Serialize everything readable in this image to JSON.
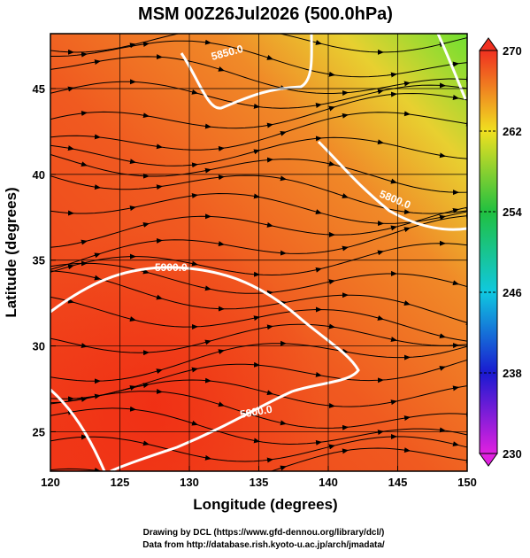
{
  "chart_data": {
    "type": "map",
    "title": "MSM 00Z26Jul2026 (500.0hPa)",
    "x_label": "Longitude (degrees)",
    "y_label": "Latitude (degrees)",
    "xlim": [
      120,
      150
    ],
    "xticks": [
      120,
      125,
      130,
      135,
      140,
      145,
      150
    ],
    "ylim": [
      22.7,
      48.2
    ],
    "yticks": [
      25,
      30,
      35,
      40,
      45
    ],
    "grid": true,
    "colorbar": {
      "lim": [
        230,
        270
      ],
      "ticks": [
        230,
        238,
        246,
        254,
        262,
        270
      ],
      "colors": [
        "#e020e0",
        "#1a1ad0",
        "#10c8e0",
        "#20c040",
        "#f0e020",
        "#f03020"
      ]
    },
    "contour_labels": [
      "5850.0",
      "5800.0",
      "5900.0",
      "5900.0"
    ],
    "footer": [
      "Drawing by DCL (https://www.gfd-dennou.org/library/dcl/)",
      "Data from http://database.rish.kyoto-u.ac.jp/arch/jmadata/"
    ]
  }
}
